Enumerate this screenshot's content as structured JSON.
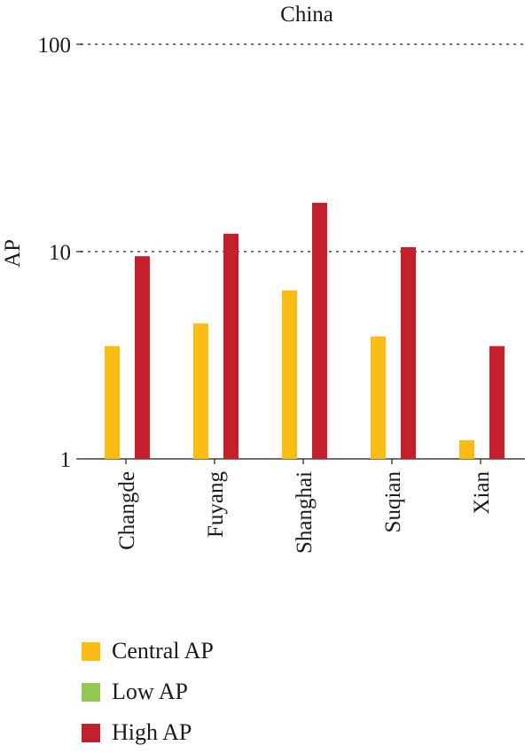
{
  "chart_data": {
    "type": "bar",
    "title": "China",
    "ylabel": "AP",
    "xlabel": "",
    "yscale": "log",
    "ylim": [
      1,
      100
    ],
    "yticks": [
      "1",
      "10",
      "100"
    ],
    "grid": "dotted horizontal at 10 and 100",
    "legend_position": "bottom-left",
    "categories": [
      "Changde",
      "Fuyang",
      "Shanghai",
      "Suqian",
      "Xian"
    ],
    "series": [
      {
        "name": "Central AP",
        "color": "#fbbc14",
        "values": [
          3.5,
          4.5,
          6.5,
          3.9,
          1.23
        ]
      },
      {
        "name": "Low AP",
        "color": "#92c955",
        "values": [
          null,
          null,
          null,
          null,
          null
        ]
      },
      {
        "name": "High AP",
        "color": "#c4202c",
        "values": [
          9.5,
          12.2,
          17.2,
          10.5,
          3.5
        ]
      }
    ]
  }
}
